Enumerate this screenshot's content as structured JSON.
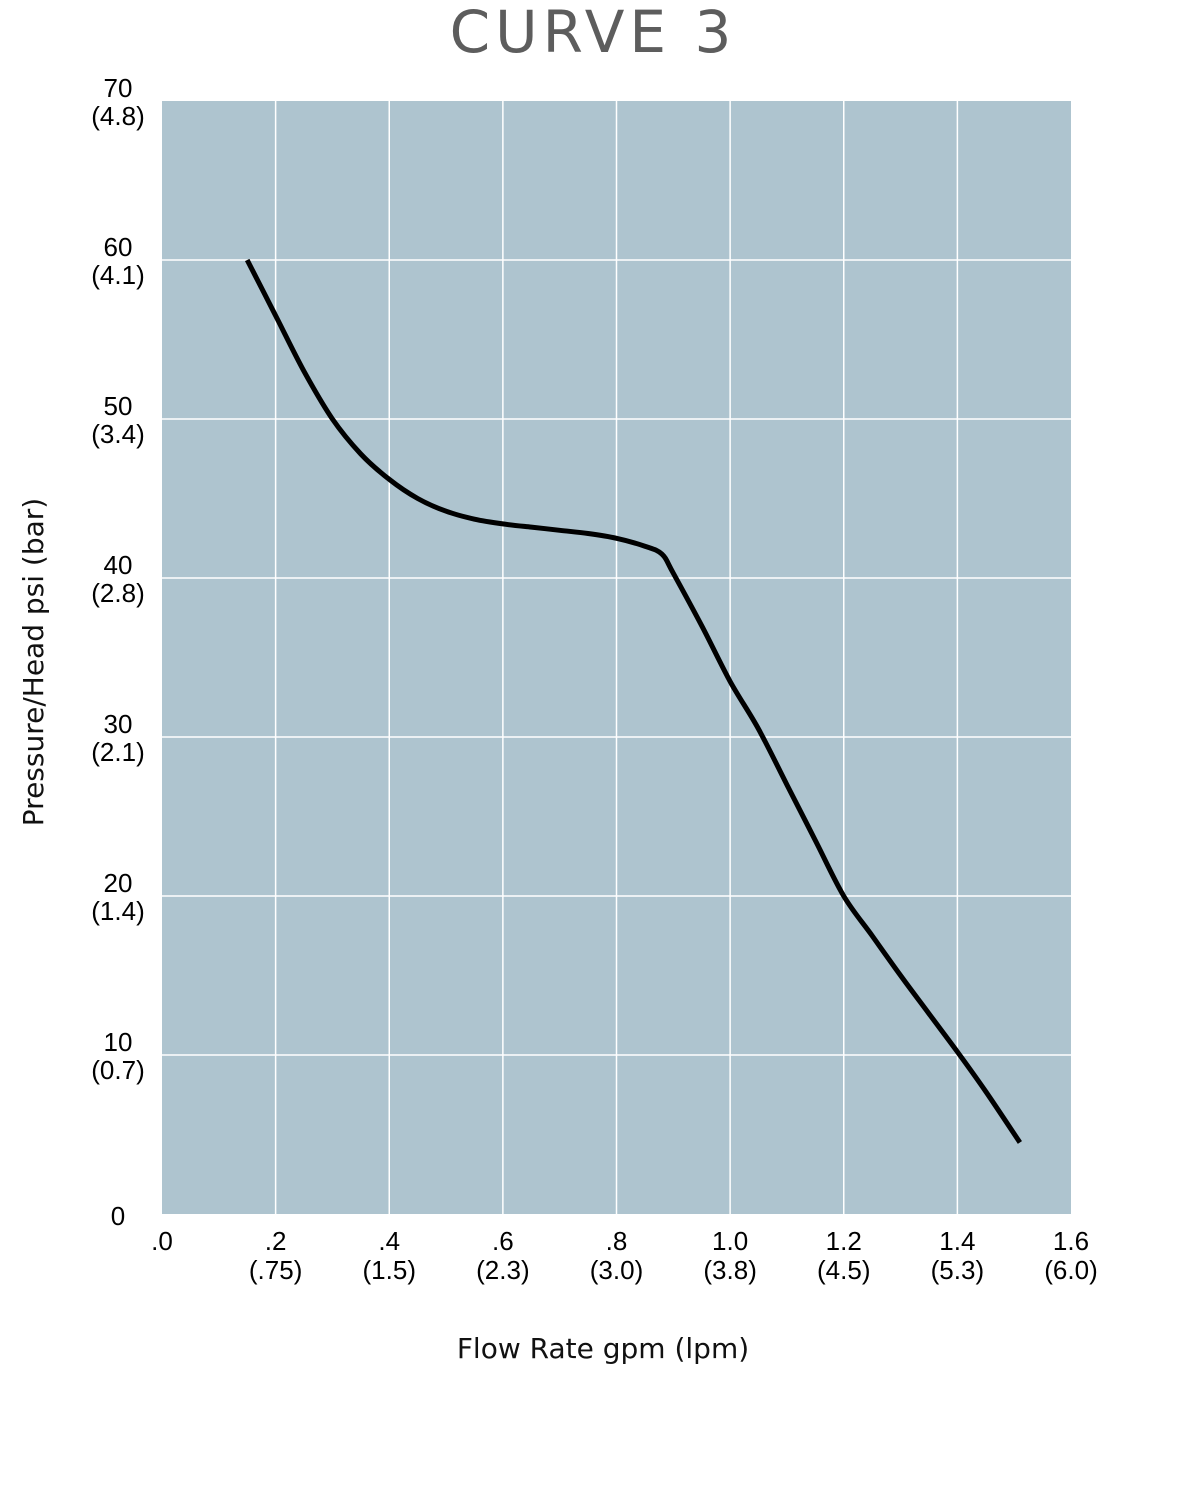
{
  "chart_data": {
    "type": "line",
    "title": "CURVE 3",
    "xlabel": "Flow Rate gpm (lpm)",
    "ylabel": "Pressure/Head psi (bar)",
    "xlim": [
      0,
      1.6
    ],
    "ylim": [
      0,
      70
    ],
    "grid": true,
    "x_ticks": [
      {
        "value": 0.0,
        "label": ".0",
        "sub": ""
      },
      {
        "value": 0.2,
        "label": ".2",
        "sub": "(.75)"
      },
      {
        "value": 0.4,
        "label": ".4",
        "sub": "(1.5)"
      },
      {
        "value": 0.6,
        "label": ".6",
        "sub": "(2.3)"
      },
      {
        "value": 0.8,
        "label": ".8",
        "sub": "(3.0)"
      },
      {
        "value": 1.0,
        "label": "1.0",
        "sub": "(3.8)"
      },
      {
        "value": 1.2,
        "label": "1.2",
        "sub": "(4.5)"
      },
      {
        "value": 1.4,
        "label": "1.4",
        "sub": "(5.3)"
      },
      {
        "value": 1.6,
        "label": "1.6",
        "sub": "(6.0)"
      }
    ],
    "y_ticks": [
      {
        "value": 0,
        "label": "0",
        "sub": ""
      },
      {
        "value": 10,
        "label": "10",
        "sub": "(0.7)"
      },
      {
        "value": 20,
        "label": "20",
        "sub": "(1.4)"
      },
      {
        "value": 30,
        "label": "30",
        "sub": "(2.1)"
      },
      {
        "value": 40,
        "label": "40",
        "sub": "(2.8)"
      },
      {
        "value": 50,
        "label": "50",
        "sub": "(3.4)"
      },
      {
        "value": 60,
        "label": "60",
        "sub": "(4.1)"
      },
      {
        "value": 70,
        "label": "70",
        "sub": "(4.8)"
      }
    ],
    "series": [
      {
        "x": [
          0.15,
          0.2,
          0.25,
          0.3,
          0.35,
          0.4,
          0.45,
          0.5,
          0.55,
          0.6,
          0.65,
          0.7,
          0.75,
          0.8,
          0.85,
          0.88,
          0.9,
          0.95,
          1.0,
          1.05,
          1.1,
          1.15,
          1.2,
          1.25,
          1.3,
          1.35,
          1.4,
          1.45,
          1.51
        ],
        "y": [
          60,
          56.5,
          53,
          50,
          47.8,
          46.2,
          45,
          44.2,
          43.7,
          43.4,
          43.2,
          43,
          42.8,
          42.5,
          42,
          41.5,
          40.3,
          37,
          33.5,
          30.5,
          27,
          23.5,
          20,
          17.5,
          15,
          12.6,
          10.2,
          7.7,
          4.5
        ],
        "color": "#000000"
      }
    ],
    "colors": {
      "plot_background": "#aec4cf",
      "gridline": "#ffffff",
      "line": "#000000"
    }
  }
}
